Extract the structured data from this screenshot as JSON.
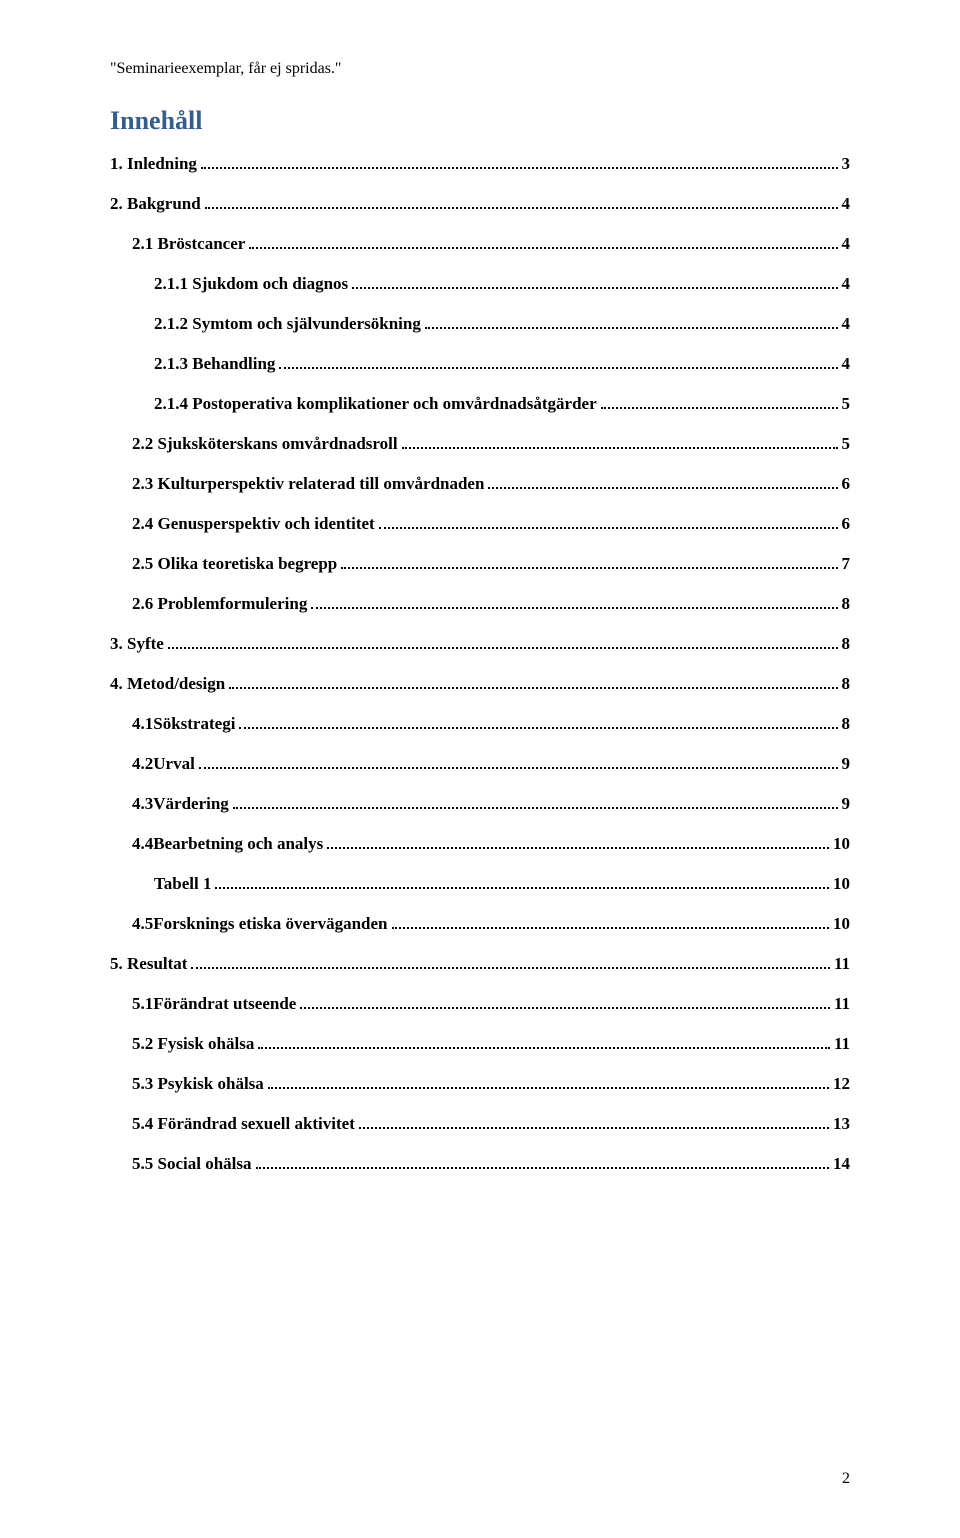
{
  "header_note": "\"Seminarieexemplar, får ej spridas.\"",
  "toc_title": "Innehåll",
  "page_number": "2",
  "entries": [
    {
      "label": "1. Inledning",
      "page": "3",
      "indent": 0
    },
    {
      "label": "2. Bakgrund",
      "page": "4",
      "indent": 0
    },
    {
      "label": "2.1 Bröstcancer",
      "page": "4",
      "indent": 1
    },
    {
      "label": "2.1.1 Sjukdom och diagnos",
      "page": "4",
      "indent": 2
    },
    {
      "label": "2.1.2 Symtom och självundersökning",
      "page": "4",
      "indent": 2
    },
    {
      "label": "2.1.3 Behandling",
      "page": "4",
      "indent": 2
    },
    {
      "label": "2.1.4 Postoperativa komplikationer och omvårdnadsåtgärder",
      "page": "5",
      "indent": 2
    },
    {
      "label": "2.2 Sjuksköterskans omvårdnadsroll",
      "page": "5",
      "indent": 1
    },
    {
      "label": "2.3 Kulturperspektiv relaterad till omvårdnaden",
      "page": "6",
      "indent": 1
    },
    {
      "label": "2.4 Genusperspektiv och identitet",
      "page": "6",
      "indent": 1
    },
    {
      "label": "2.5 Olika teoretiska begrepp",
      "page": "7",
      "indent": 1
    },
    {
      "label": "2.6 Problemformulering",
      "page": "8",
      "indent": 1
    },
    {
      "label": "3. Syfte",
      "page": "8",
      "indent": 0
    },
    {
      "label": "4. Metod/design",
      "page": "8",
      "indent": 0
    },
    {
      "label": "4.1Sökstrategi",
      "page": "8",
      "indent": 1
    },
    {
      "label": "4.2Urval",
      "page": "9",
      "indent": 1
    },
    {
      "label": "4.3Värdering",
      "page": "9",
      "indent": 1
    },
    {
      "label": "4.4Bearbetning och analys",
      "page": "10",
      "indent": 1
    },
    {
      "label": "Tabell 1",
      "page": "10",
      "indent": 2
    },
    {
      "label": "4.5Forsknings etiska överväganden",
      "page": "10",
      "indent": 1
    },
    {
      "label": "5. Resultat",
      "page": "11",
      "indent": 0
    },
    {
      "label": "5.1Förändrat utseende",
      "page": "11",
      "indent": 1
    },
    {
      "label": "5.2 Fysisk ohälsa",
      "page": "11",
      "indent": 1
    },
    {
      "label": "5.3 Psykisk ohälsa",
      "page": "12",
      "indent": 1
    },
    {
      "label": "5.4 Förändrad sexuell aktivitet",
      "page": "13",
      "indent": 1
    },
    {
      "label": "5.5 Social ohälsa",
      "page": "14",
      "indent": 1
    }
  ]
}
